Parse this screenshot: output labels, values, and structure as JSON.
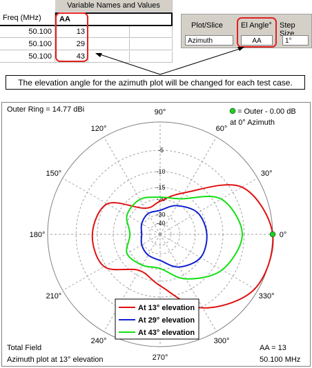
{
  "table": {
    "title": "Variable Names and Values",
    "header": [
      "Freq (MHz)",
      "AA"
    ],
    "rows": [
      [
        "50.100",
        "13"
      ],
      [
        "50.100",
        "29"
      ],
      [
        "50.100",
        "43"
      ]
    ]
  },
  "controls": {
    "plot_slice": {
      "label": "Plot/Slice",
      "value": "Azimuth"
    },
    "el_angle": {
      "label": "El Angle°",
      "value": "AA"
    },
    "step_size": {
      "label": "Step Size",
      "value": "1°"
    }
  },
  "callout": "The elevation angle for the azimuth plot will be changed for each test case.",
  "chart_data": {
    "type": "polar",
    "title": "Outer Ring = 14.77 dBi",
    "max_note": [
      "= Outer - 0.00 dB",
      "at 0° Azimuth"
    ],
    "footer_left": [
      "Total Field",
      "Azimuth plot at 13° elevation"
    ],
    "footer_right": [
      "AA = 13",
      "50.100 MHz"
    ],
    "rscale": "arrl-log",
    "rlim": [
      -40,
      0
    ],
    "rticks": [
      -5,
      -10,
      -15,
      -20,
      -30,
      -40
    ],
    "angles": [
      0,
      30,
      60,
      90,
      120,
      150,
      180,
      210,
      240,
      270,
      300,
      330
    ],
    "angle_ticks": [
      {
        "value": 0,
        "label": "0°"
      },
      {
        "value": 30,
        "label": "30°"
      },
      {
        "value": 60,
        "label": "60°"
      },
      {
        "value": 90,
        "label": "90°"
      },
      {
        "value": 120,
        "label": "120°"
      },
      {
        "value": 150,
        "label": "150°"
      },
      {
        "value": 180,
        "label": "180°"
      },
      {
        "value": 210,
        "label": "210°"
      },
      {
        "value": 240,
        "label": "240°"
      },
      {
        "value": 270,
        "label": "270°"
      },
      {
        "value": 300,
        "label": "300°"
      },
      {
        "value": 330,
        "label": "330°"
      }
    ],
    "series": [
      {
        "name": "At 13° elevation",
        "color": "#e01010",
        "values": [
          0,
          -3,
          -14.6,
          -21,
          -22.6,
          -10.5,
          -8.7,
          -9.5,
          -17,
          -13.4,
          -4.8,
          -0.5
        ]
      },
      {
        "name": "At 29° elevation",
        "color": "#1020d0",
        "values": [
          -15.1,
          -16.4,
          -21,
          -26.5,
          -26.5,
          -28.6,
          -31,
          -28.6,
          -26.5,
          -25,
          -18.7,
          -15.1
        ]
      },
      {
        "name": "At 43° elevation",
        "color": "#10e010",
        "values": [
          -5.4,
          -8,
          -17.3,
          -19,
          -17.6,
          -18.5,
          -22.6,
          -18.5,
          -19.7,
          -20.4,
          -13.4,
          -7.8
        ]
      }
    ]
  }
}
